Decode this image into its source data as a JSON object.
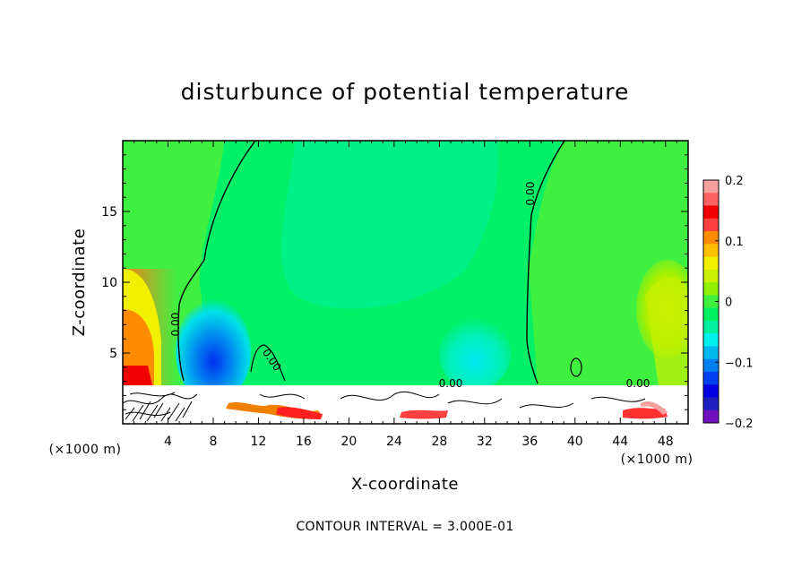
{
  "chart_data": {
    "type": "heatmap",
    "title": "disturbunce of potential temperature",
    "xlabel": "X-coordinate",
    "ylabel": "Z-coordinate",
    "x_unit": "(×1000 m)",
    "y_unit": "(×1000 m)",
    "xlim": [
      0,
      50
    ],
    "ylim": [
      0,
      20
    ],
    "x_ticks": [
      4,
      8,
      12,
      16,
      20,
      24,
      28,
      32,
      36,
      40,
      44,
      48
    ],
    "y_ticks": [
      5,
      10,
      15
    ],
    "colorbar": {
      "range": [
        -0.2,
        0.2
      ],
      "tick_values": [
        0.2,
        0.1,
        0,
        -0.1,
        -0.2
      ],
      "tick_labels": [
        "0.2",
        "0.1",
        "0",
        "−0.1",
        "−0.2"
      ],
      "colors": [
        "#f7a0a0",
        "#ff6060",
        "#f00000",
        "#ff4040",
        "#ff8c00",
        "#ffc000",
        "#f0f000",
        "#c8f000",
        "#90f000",
        "#40f040",
        "#00f060",
        "#00f0a0",
        "#00f0f0",
        "#00b8f0",
        "#0080f0",
        "#0040f0",
        "#0000e0",
        "#2020c0",
        "#7010c0"
      ]
    },
    "contour_labels": [
      "0.00",
      "0.00",
      "0.00",
      "0.00",
      "0.00"
    ],
    "contour_interval_text": "CONTOUR INTERVAL = 3.000E-01",
    "regions": [
      {
        "name": "upper-domain",
        "value": 0.0
      },
      {
        "name": "left-warm-low",
        "x": 0.5,
        "z": 5,
        "value": 0.15
      },
      {
        "name": "cold-pool-8km",
        "x": 8,
        "z": 4,
        "value": -0.12
      },
      {
        "name": "cool-28-32km",
        "x": 30,
        "z": 5,
        "value": -0.05
      },
      {
        "name": "right-warm",
        "x": 48,
        "z": 8,
        "value": 0.06
      }
    ]
  }
}
